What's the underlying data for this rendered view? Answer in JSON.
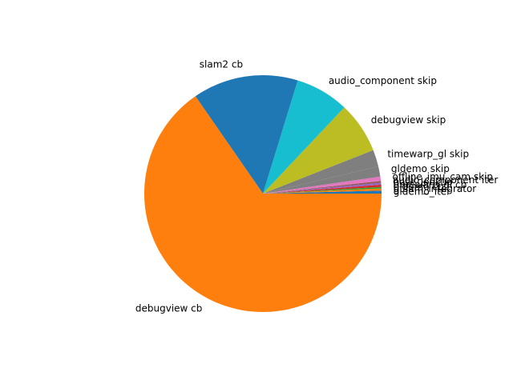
{
  "chart_data": {
    "type": "pie",
    "title": "",
    "start_angle": 0,
    "direction": "counterclockwise",
    "slices": [
      {
        "label": "gldemo_iter",
        "value": 0.4,
        "color": "#1f77b4"
      },
      {
        "label": "gtsam_integrator",
        "value": 0.3,
        "color": "#ff7f0e"
      },
      {
        "label": "gldemo cb",
        "value": 0.2,
        "color": "#2ca02c"
      },
      {
        "label": "timewarp_gl cb",
        "value": 0.3,
        "color": "#d62728"
      },
      {
        "label": "pose_lookup",
        "value": 0.3,
        "color": "#9467bd"
      },
      {
        "label": "audio_component iter",
        "value": 0.2,
        "color": "#8c564b"
      },
      {
        "label": "offline_imu_cam skip",
        "value": 0.6,
        "color": "#e377c2"
      },
      {
        "label": "gldemo skip",
        "value": 1.4,
        "color": "#7f7f7f"
      },
      {
        "label": "timewarp_gl skip",
        "value": 2.3,
        "color": "#7f7f7f"
      },
      {
        "label": "debugview skip",
        "value": 7.0,
        "color": "#bcbd22"
      },
      {
        "label": "audio_component skip",
        "value": 7.3,
        "color": "#17becf"
      },
      {
        "label": "slam2 cb",
        "value": 14.4,
        "color": "#1f77b4"
      },
      {
        "label": "debugview cb",
        "value": 65.5,
        "color": "#ff7f0e"
      }
    ]
  }
}
